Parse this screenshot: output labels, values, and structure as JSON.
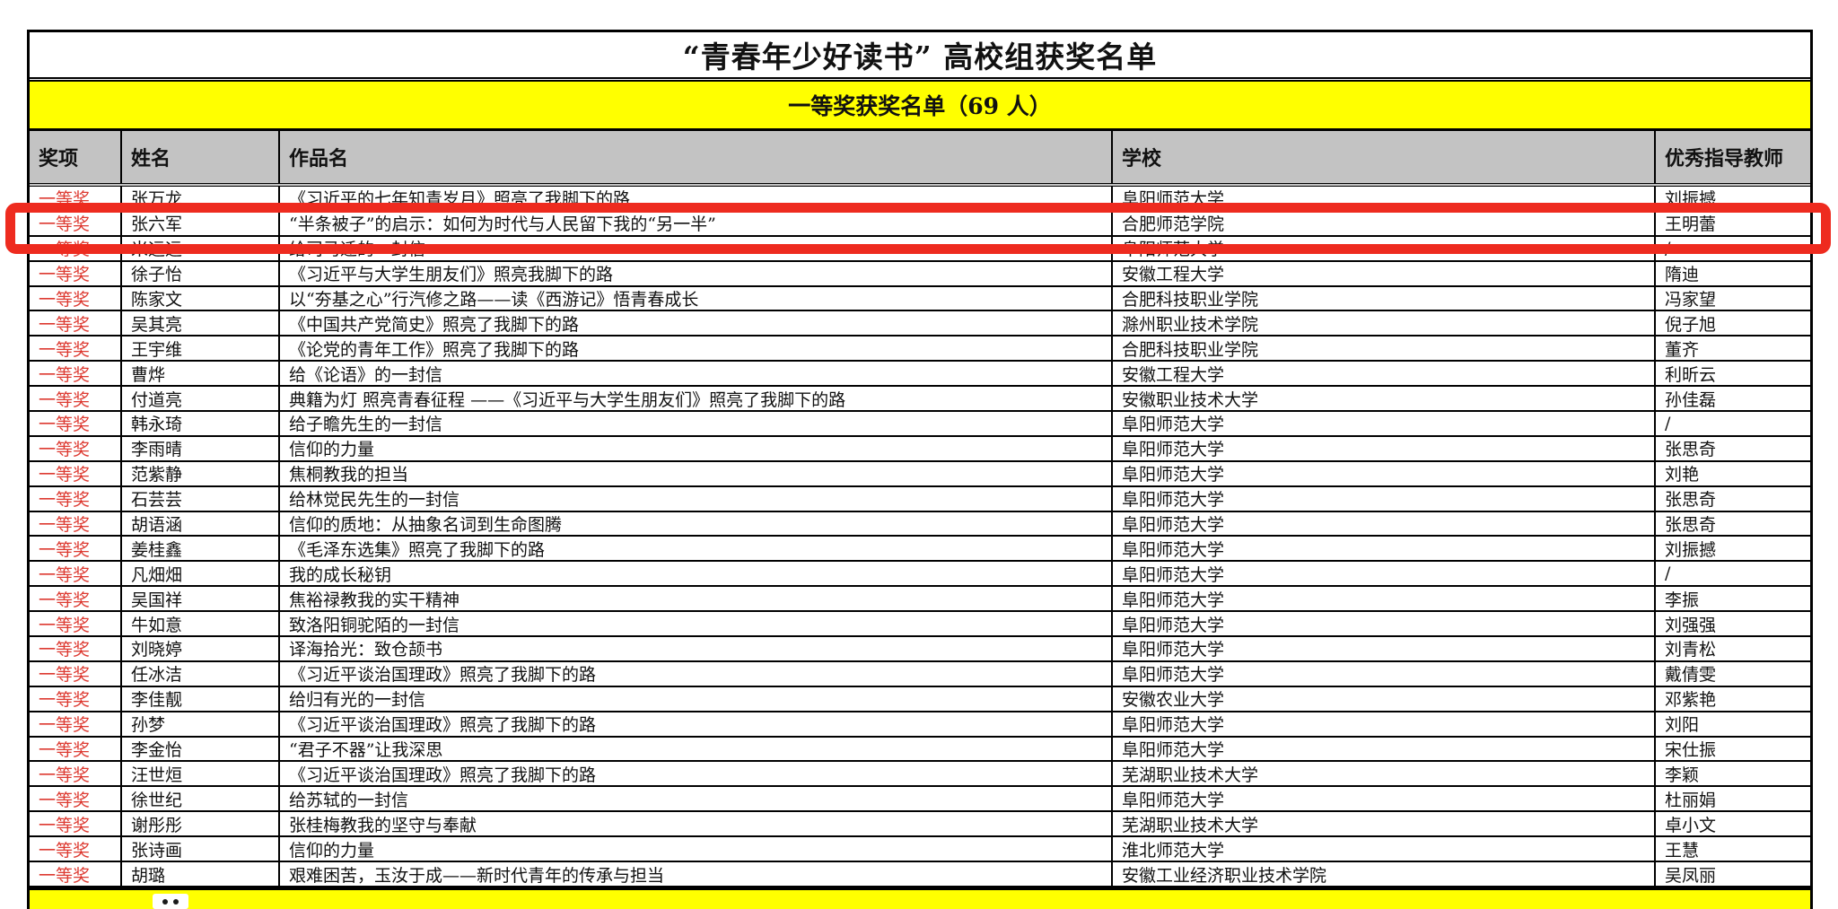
{
  "doc": {
    "title": "“青春年少好读书” 高校组获奖名单",
    "section_header": "一等奖获奖名单（69 人）"
  },
  "colors": {
    "section_yellow": "#ffff00",
    "header_gray": "#c3c3c3",
    "award_text_red": "#dd3a31",
    "highlight_box_red": "#ee2b1f",
    "border_black": "#000000"
  },
  "highlight": {
    "shape": "red-rounded-rectangle",
    "highlighted_row_number": 2,
    "highlighted_name": "张六军"
  },
  "table": {
    "columns": [
      "奖项",
      "姓名",
      "作品名",
      "学校",
      "优秀指导教师"
    ],
    "rows": [
      {
        "award": "一等奖",
        "name": "张万龙",
        "work": "《习近平的七年知青岁月》照亮了我脚下的路",
        "school": "阜阳师范大学",
        "teacher": "刘振撼"
      },
      {
        "award": "一等奖",
        "name": "张六军",
        "work": "“半条被子”的启示：如何为时代与人民留下我的“另一半”",
        "school": "合肥师范学院",
        "teacher": "王明蕾"
      },
      {
        "award": "一等奖",
        "name": "米远远",
        "work": "给司马迁的一封信",
        "school": "阜阳师范大学",
        "teacher": "/"
      },
      {
        "award": "一等奖",
        "name": "徐子怡",
        "work": "《习近平与大学生朋友们》照亮我脚下的路",
        "school": "安徽工程大学",
        "teacher": "隋迪"
      },
      {
        "award": "一等奖",
        "name": "陈家文",
        "work": "以“夯基之心”行汽修之路——读《西游记》悟青春成长",
        "school": "合肥科技职业学院",
        "teacher": "冯家望"
      },
      {
        "award": "一等奖",
        "name": "吴其亮",
        "work": "《中国共产党简史》照亮了我脚下的路",
        "school": "滁州职业技术学院",
        "teacher": "倪子旭"
      },
      {
        "award": "一等奖",
        "name": "王宇维",
        "work": "《论党的青年工作》照亮了我脚下的路",
        "school": "合肥科技职业学院",
        "teacher": "董齐"
      },
      {
        "award": "一等奖",
        "name": "曹烨",
        "work": "给《论语》的一封信",
        "school": "安徽工程大学",
        "teacher": "利昕云"
      },
      {
        "award": "一等奖",
        "name": "付道亮",
        "work": "典籍为灯 照亮青春征程 ——《习近平与大学生朋友们》照亮了我脚下的路",
        "school": "安徽职业技术大学",
        "teacher": "孙佳磊"
      },
      {
        "award": "一等奖",
        "name": "韩永琦",
        "work": "给子瞻先生的一封信",
        "school": "阜阳师范大学",
        "teacher": "/"
      },
      {
        "award": "一等奖",
        "name": "李雨晴",
        "work": "信仰的力量",
        "school": "阜阳师范大学",
        "teacher": "张思奇"
      },
      {
        "award": "一等奖",
        "name": "范紫静",
        "work": "焦桐教我的担当",
        "school": "阜阳师范大学",
        "teacher": "刘艳"
      },
      {
        "award": "一等奖",
        "name": "石芸芸",
        "work": "给林觉民先生的一封信",
        "school": "阜阳师范大学",
        "teacher": "张思奇"
      },
      {
        "award": "一等奖",
        "name": "胡语涵",
        "work": "信仰的质地：从抽象名词到生命图腾",
        "school": "阜阳师范大学",
        "teacher": "张思奇"
      },
      {
        "award": "一等奖",
        "name": "姜桂鑫",
        "work": "《毛泽东选集》照亮了我脚下的路",
        "school": "阜阳师范大学",
        "teacher": "刘振撼"
      },
      {
        "award": "一等奖",
        "name": "凡畑畑",
        "work": "我的成长秘钥",
        "school": "阜阳师范大学",
        "teacher": "/"
      },
      {
        "award": "一等奖",
        "name": "吴国祥",
        "work": "焦裕禄教我的实干精神",
        "school": "阜阳师范大学",
        "teacher": "李振"
      },
      {
        "award": "一等奖",
        "name": "牛如意",
        "work": "致洛阳铜驼陌的一封信",
        "school": "阜阳师范大学",
        "teacher": "刘强强"
      },
      {
        "award": "一等奖",
        "name": "刘晓婷",
        "work": "译海拾光：致仓颉书",
        "school": "阜阳师范大学",
        "teacher": "刘青松"
      },
      {
        "award": "一等奖",
        "name": "任冰洁",
        "work": "《习近平谈治国理政》照亮了我脚下的路",
        "school": "阜阳师范大学",
        "teacher": "戴倩雯"
      },
      {
        "award": "一等奖",
        "name": "李佳靓",
        "work": "给归有光的一封信",
        "school": "安徽农业大学",
        "teacher": "邓紫艳"
      },
      {
        "award": "一等奖",
        "name": "孙梦",
        "work": "《习近平谈治国理政》照亮了我脚下的路",
        "school": "阜阳师范大学",
        "teacher": "刘阳"
      },
      {
        "award": "一等奖",
        "name": "李金怡",
        "work": "“君子不器”让我深思",
        "school": "阜阳师范大学",
        "teacher": "宋仕振"
      },
      {
        "award": "一等奖",
        "name": "汪世烜",
        "work": "《习近平谈治国理政》照亮了我脚下的路",
        "school": "芜湖职业技术大学",
        "teacher": "李颖"
      },
      {
        "award": "一等奖",
        "name": "徐世纪",
        "work": "给苏轼的一封信",
        "school": "阜阳师范大学",
        "teacher": "杜丽娟"
      },
      {
        "award": "一等奖",
        "name": "谢彤彤",
        "work": "张桂梅教我的坚守与奉献",
        "school": "芜湖职业技术大学",
        "teacher": "卓小文"
      },
      {
        "award": "一等奖",
        "name": "张诗画",
        "work": "信仰的力量",
        "school": "淮北师范大学",
        "teacher": "王慧"
      },
      {
        "award": "一等奖",
        "name": "胡璐",
        "work": "艰难困苦，玉汝于成——新时代青年的传承与担当",
        "school": "安徽工业经济职业技术学院",
        "teacher": "吴凤丽"
      }
    ]
  }
}
